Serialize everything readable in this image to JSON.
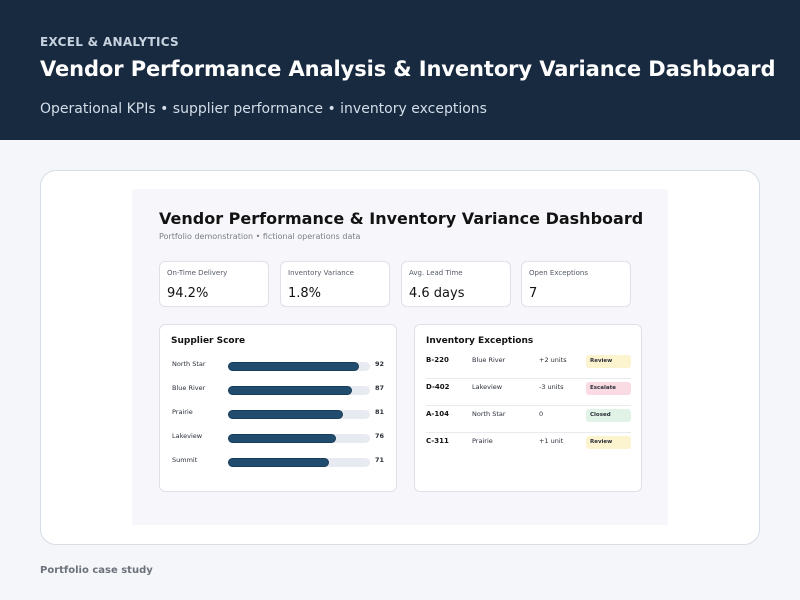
{
  "header": {
    "eyebrow": "EXCEL & ANALYTICS",
    "title": "Vendor Performance Analysis & Inventory Variance Dashboard",
    "subtitle": "Operational KPIs • supplier performance • inventory exceptions"
  },
  "dashboard": {
    "title": "Vendor Performance & Inventory Variance Dashboard",
    "subtitle": "Portfolio demonstration • fictional operations data",
    "kpis": [
      {
        "label": "On-Time Delivery",
        "value": "94.2%"
      },
      {
        "label": "Inventory Variance",
        "value": "1.8%"
      },
      {
        "label": "Avg. Lead Time",
        "value": "4.6 days"
      },
      {
        "label": "Open Exceptions",
        "value": "7"
      }
    ],
    "supplier_panel": {
      "title": "Supplier Score",
      "scale_max": 100,
      "suppliers": [
        {
          "name": "North Star",
          "score": 92
        },
        {
          "name": "Blue River",
          "score": 87
        },
        {
          "name": "Prairie",
          "score": 81
        },
        {
          "name": "Lakeview",
          "score": 76
        },
        {
          "name": "Summit",
          "score": 71
        }
      ]
    },
    "exceptions_panel": {
      "title": "Inventory Exceptions",
      "rows": [
        {
          "id": "B-220",
          "location": "Blue River",
          "units": "+2 units",
          "status": "Review",
          "status_color": "#fcf3cf"
        },
        {
          "id": "D-402",
          "location": "Lakeview",
          "units": "-3 units",
          "status": "Escalate",
          "status_color": "#fadbe4"
        },
        {
          "id": "A-104",
          "location": "North Star",
          "units": "0",
          "status": "Closed",
          "status_color": "#e1f3e7"
        },
        {
          "id": "C-311",
          "location": "Prairie",
          "units": "+1 unit",
          "status": "Review",
          "status_color": "#fcf3cf"
        }
      ]
    }
  },
  "footer": {
    "caption": "Portfolio case study"
  },
  "colors": {
    "header_bg": "#172a40",
    "bar_fill": "#204d6e",
    "bar_track": "#e7ebf1"
  }
}
